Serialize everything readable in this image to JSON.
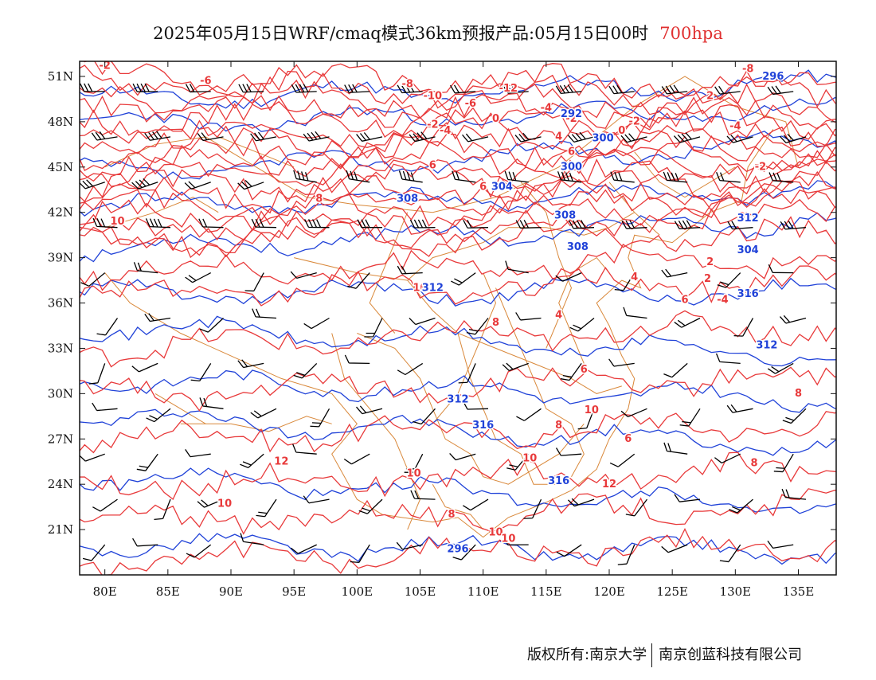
{
  "title": {
    "text": "2025年05月15日WRF/cmaq模式36km预报产品:05月15日00时",
    "level": "700hpa",
    "level_color": "#e03030"
  },
  "map": {
    "projection": "lat-lon",
    "lon_range": [
      78,
      138
    ],
    "lat_range": [
      18,
      52
    ],
    "lat_ticks": [
      "51N",
      "48N",
      "45N",
      "42N",
      "39N",
      "36N",
      "33N",
      "30N",
      "27N",
      "24N",
      "21N"
    ],
    "lon_ticks": [
      "80E",
      "85E",
      "90E",
      "95E",
      "100E",
      "105E",
      "110E",
      "115E",
      "120E",
      "125E",
      "130E",
      "135E"
    ],
    "colors": {
      "temperature_contour": "#e8393a",
      "height_contour": "#2042d8",
      "boundary": "#d9883a",
      "wind_barb": "#000000"
    },
    "temperature_labels": [
      "-2",
      "-6",
      "-8",
      "-10",
      "-12",
      "-6",
      "-4",
      "-2",
      "0",
      "-2",
      "-4",
      "-2",
      "0",
      "2",
      "4",
      "6",
      "6",
      "6",
      "8",
      "10",
      "10",
      "12",
      "10",
      "4",
      "2",
      "-2",
      "0",
      "8",
      "6",
      "8",
      "6",
      "10",
      "8",
      "10",
      "10",
      "12",
      "10",
      "8",
      "8",
      "10",
      "6",
      "4",
      "-4",
      "-4",
      "2",
      "-8"
    ],
    "height_labels": [
      "296",
      "292",
      "300",
      "300",
      "304",
      "308",
      "308",
      "312",
      "308",
      "304",
      "312",
      "316",
      "312",
      "312",
      "316",
      "316",
      "296"
    ]
  },
  "footer": {
    "left": "版权所有:南京大学",
    "right": "南京创蓝科技有限公司"
  }
}
